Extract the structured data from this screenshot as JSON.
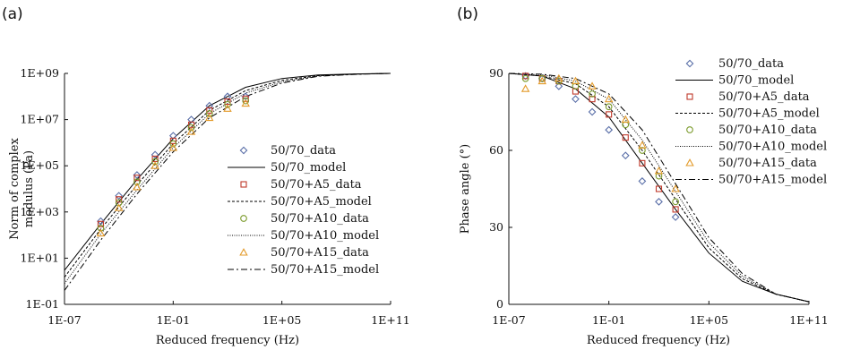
{
  "panels": [
    "(a)",
    "(b)"
  ],
  "series_styles": [
    {
      "name": "50/70_data",
      "kind": "marker",
      "marker": "diamond",
      "color": "#5a6fa8"
    },
    {
      "name": "50/70_model",
      "kind": "line",
      "dash": "",
      "color": "#000000"
    },
    {
      "name": "50/70+A5_data",
      "kind": "marker",
      "marker": "square",
      "color": "#c0392b"
    },
    {
      "name": "50/70+A5_model",
      "kind": "line",
      "dash": "3,2",
      "color": "#000000"
    },
    {
      "name": "50/70+A10_data",
      "kind": "marker",
      "marker": "circle",
      "color": "#7a9a2a"
    },
    {
      "name": "50/70+A10_model",
      "kind": "line",
      "dash": "1,1.5",
      "color": "#000000"
    },
    {
      "name": "50/70+A15_data",
      "kind": "marker",
      "marker": "triangle",
      "color": "#e39b2b"
    },
    {
      "name": "50/70+A15_model",
      "kind": "line",
      "dash": "7,3,2,3",
      "color": "#000000"
    }
  ],
  "chart_data": [
    {
      "type": "scatter",
      "panel": "(a)",
      "xlabel": "Reduced frequency (Hz)",
      "ylabel": "Norm of complex modulus (Pa)",
      "xscale": "log",
      "yscale": "log",
      "xlim": [
        1e-07,
        100000000000.0
      ],
      "ylim": [
        0.1,
        1000000000.0
      ],
      "xticks": [
        1e-07,
        0.1,
        100000.0,
        100000000000.0
      ],
      "xtick_labels": [
        "1E-07",
        "1E-01",
        "1E+05",
        "1E+11"
      ],
      "yticks": [
        0.1,
        10.0,
        1000.0,
        100000.0,
        10000000.0,
        1000000000.0
      ],
      "ytick_labels": [
        "1E-01",
        "1E+01",
        "1E+03",
        "1E+05",
        "1E+07",
        "1E+09"
      ],
      "legend_position": "right",
      "series": [
        {
          "name": "50/70_data",
          "x": [
            1e-05,
            0.0001,
            0.001,
            0.01,
            0.1,
            1,
            10,
            100,
            1000
          ],
          "y": [
            400,
            5000,
            40000,
            300000,
            2000000,
            10000000,
            40000000,
            100000000,
            100000000
          ]
        },
        {
          "name": "50/70_model",
          "x": [
            1e-07,
            1e-05,
            0.001,
            0.1,
            10,
            1000,
            100000,
            10000000,
            1000000000.0,
            100000000000.0
          ],
          "y": [
            3,
            300,
            25000,
            1500000,
            40000000,
            250000000,
            600000000,
            850000000,
            950000000,
            1000000000
          ]
        },
        {
          "name": "50/70+A5_data",
          "x": [
            1e-05,
            0.0001,
            0.001,
            0.01,
            0.1,
            1,
            10,
            100,
            1000
          ],
          "y": [
            300,
            3500,
            30000,
            200000,
            1200000,
            6000000,
            25000000,
            60000000,
            80000000
          ]
        },
        {
          "name": "50/70+A5_model",
          "x": [
            1e-07,
            1e-05,
            0.001,
            0.1,
            10,
            1000,
            100000,
            10000000,
            1000000000.0,
            100000000000.0
          ],
          "y": [
            1.5,
            180,
            15000,
            900000,
            25000000,
            180000000,
            500000000,
            800000000,
            930000000,
            1000000000
          ]
        },
        {
          "name": "50/70+A10_data",
          "x": [
            1e-05,
            0.0001,
            0.001,
            0.01,
            0.1,
            1,
            10,
            100,
            1000
          ],
          "y": [
            200,
            2500,
            20000,
            150000,
            900000,
            4500000,
            18000000,
            45000000,
            65000000
          ]
        },
        {
          "name": "50/70+A10_model",
          "x": [
            1e-07,
            1e-05,
            0.001,
            0.1,
            10,
            1000,
            100000,
            10000000,
            1000000000.0,
            100000000000.0
          ],
          "y": [
            0.8,
            110,
            9000,
            600000,
            18000000,
            140000000,
            430000000,
            780000000,
            920000000,
            1000000000
          ]
        },
        {
          "name": "50/70+A15_data",
          "x": [
            1e-05,
            0.0001,
            0.001,
            0.01,
            0.1,
            1,
            10,
            100,
            1000
          ],
          "y": [
            120,
            1500,
            12000,
            100000,
            600000,
            3000000,
            12000000,
            30000000,
            50000000
          ]
        },
        {
          "name": "50/70+A15_model",
          "x": [
            1e-07,
            1e-05,
            0.001,
            0.1,
            10,
            1000,
            100000,
            10000000,
            1000000000.0,
            100000000000.0
          ],
          "y": [
            0.4,
            60,
            6000,
            400000,
            12000000,
            100000000,
            380000000,
            750000000,
            910000000,
            1000000000
          ]
        }
      ]
    },
    {
      "type": "scatter",
      "panel": "(b)",
      "xlabel": "Reduced frequency (Hz)",
      "ylabel": "Phase angle (°)",
      "xscale": "log",
      "yscale": "linear",
      "xlim": [
        1e-07,
        100000000000.0
      ],
      "ylim": [
        0,
        90
      ],
      "xticks": [
        1e-07,
        0.1,
        100000.0,
        100000000000.0
      ],
      "xtick_labels": [
        "1E-07",
        "1E-01",
        "1E+05",
        "1E+11"
      ],
      "yticks": [
        0,
        30,
        60,
        90
      ],
      "ytick_labels": [
        "0",
        "30",
        "60",
        "90"
      ],
      "legend_position": "top-right",
      "series": [
        {
          "name": "50/70_data",
          "x": [
            1e-06,
            1e-05,
            0.0001,
            0.001,
            0.01,
            0.1,
            1,
            10,
            100,
            1000
          ],
          "y": [
            89,
            88,
            85,
            80,
            75,
            68,
            58,
            48,
            40,
            34
          ]
        },
        {
          "name": "50/70_model",
          "x": [
            1e-07,
            1e-05,
            0.001,
            0.1,
            10,
            1000,
            100000,
            10000000,
            1000000000.0,
            100000000000.0
          ],
          "y": [
            90,
            89,
            84,
            73,
            55,
            37,
            20,
            9,
            4,
            1
          ]
        },
        {
          "name": "50/70+A5_data",
          "x": [
            1e-06,
            1e-05,
            0.0001,
            0.001,
            0.01,
            0.1,
            1,
            10,
            100,
            1000
          ],
          "y": [
            89,
            88,
            87,
            83,
            80,
            74,
            65,
            55,
            45,
            37
          ]
        },
        {
          "name": "50/70+A5_model",
          "x": [
            1e-07,
            1e-05,
            0.001,
            0.1,
            10,
            1000,
            100000,
            10000000,
            1000000000.0,
            100000000000.0
          ],
          "y": [
            90,
            89,
            86,
            77,
            60,
            41,
            22,
            10,
            4,
            1
          ]
        },
        {
          "name": "50/70+A10_data",
          "x": [
            1e-06,
            1e-05,
            0.0001,
            0.001,
            0.01,
            0.1,
            1,
            10,
            100,
            1000
          ],
          "y": [
            88,
            88,
            87,
            85,
            82,
            77,
            70,
            60,
            50,
            40
          ]
        },
        {
          "name": "50/70+A10_model",
          "x": [
            1e-07,
            1e-05,
            0.001,
            0.1,
            10,
            1000,
            100000,
            10000000,
            1000000000.0,
            100000000000.0
          ],
          "y": [
            90,
            89.5,
            87,
            80,
            64,
            44,
            24,
            11,
            4,
            1
          ]
        },
        {
          "name": "50/70+A15_data",
          "x": [
            1e-06,
            1e-05,
            0.0001,
            0.001,
            0.01,
            0.1,
            1,
            10,
            100,
            1000
          ],
          "y": [
            84,
            87,
            88,
            87,
            85,
            80,
            72,
            62,
            52,
            45
          ]
        },
        {
          "name": "50/70+A15_model",
          "x": [
            1e-07,
            1e-05,
            0.001,
            0.1,
            10,
            1000,
            100000,
            10000000,
            1000000000.0,
            100000000000.0
          ],
          "y": [
            90,
            89.7,
            88,
            82,
            68,
            47,
            26,
            12,
            4,
            1
          ]
        }
      ]
    }
  ]
}
